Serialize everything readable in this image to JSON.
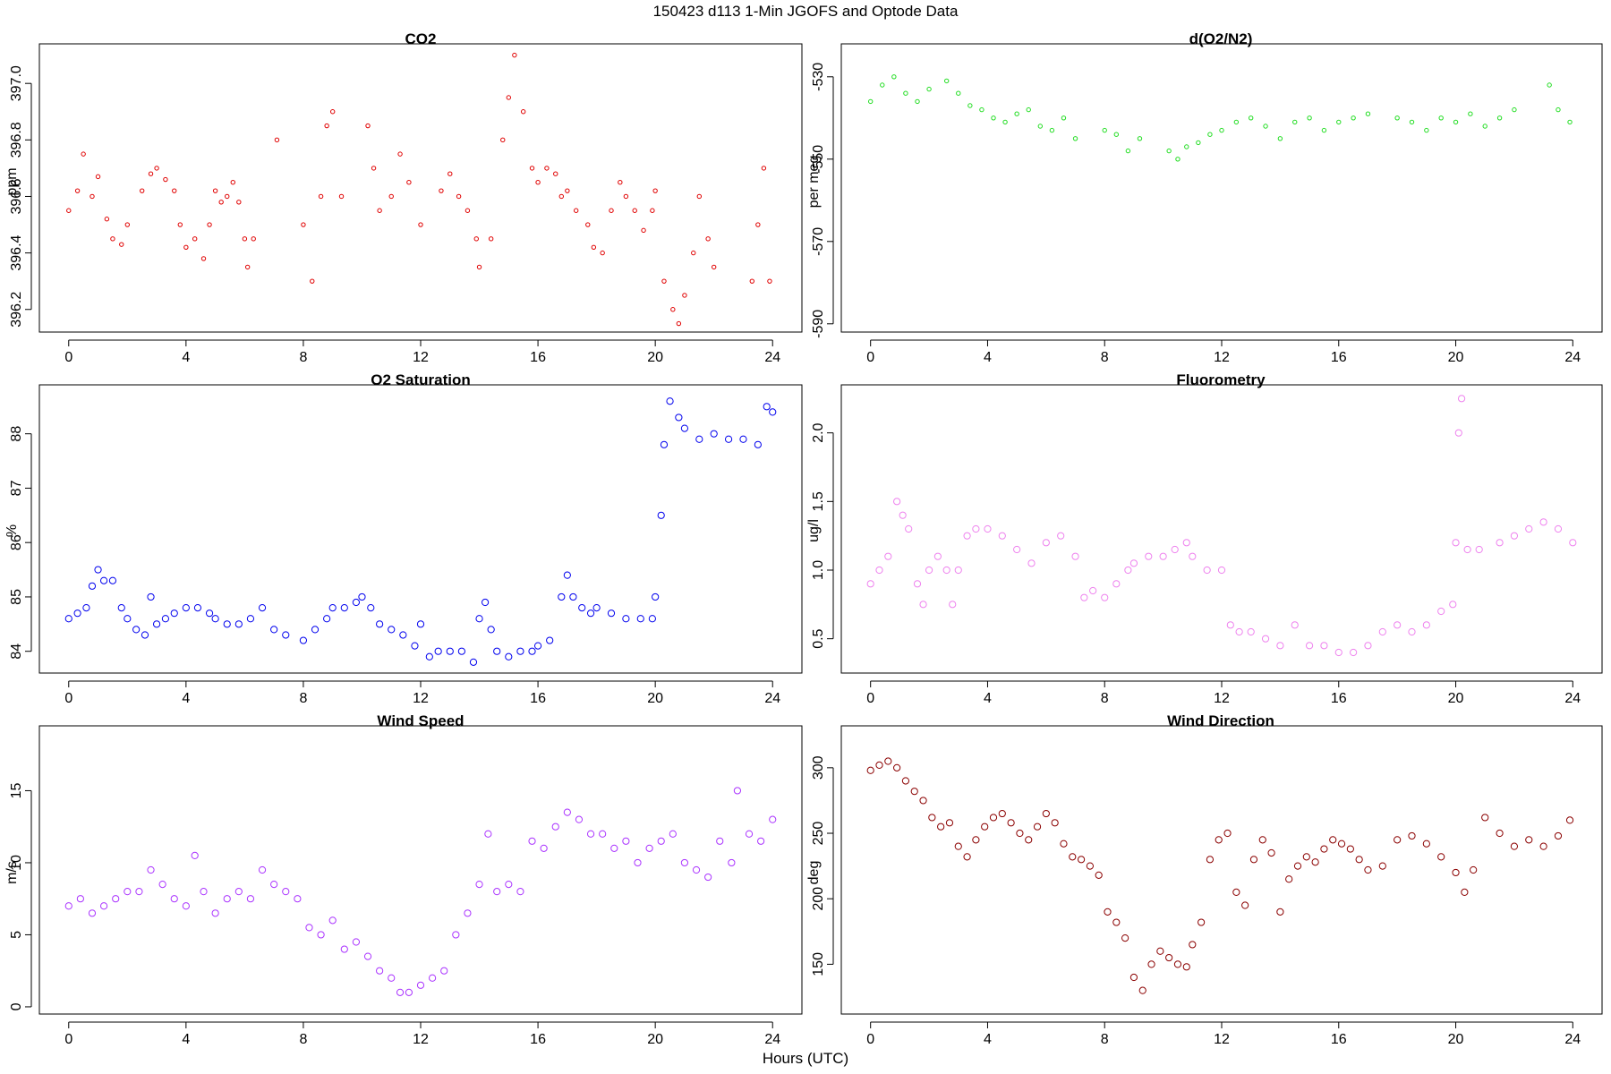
{
  "figure": {
    "title": "150423   d113   1-Min  JGOFS and Optode Data",
    "xlabel": "Hours (UTC)"
  },
  "chart_data": [
    {
      "id": "co2",
      "type": "scatter",
      "title": "CO2",
      "ylabel": "ppm",
      "color": "#e00000",
      "marker_size": 2.2,
      "xlim": [
        -1,
        25
      ],
      "ylim": [
        396.12,
        397.14
      ],
      "xticks": [
        0,
        4,
        8,
        12,
        16,
        20,
        24
      ],
      "yticks": [
        396.2,
        396.4,
        396.6,
        396.8,
        397.0
      ],
      "ytick_labels": [
        "396.2",
        "396.4",
        "396.6",
        "396.8",
        "397.0"
      ],
      "series": [
        {
          "name": "CO2",
          "x": [
            0,
            0.3,
            0.5,
            0.8,
            1.0,
            1.3,
            1.5,
            1.8,
            2.0,
            2.5,
            2.8,
            3.0,
            3.3,
            3.6,
            3.8,
            4.0,
            4.3,
            4.6,
            4.8,
            5.0,
            5.2,
            5.4,
            5.6,
            5.8,
            6.0,
            6.1,
            6.3,
            7.1,
            8.0,
            8.3,
            8.6,
            8.8,
            9.0,
            9.3,
            10.2,
            10.4,
            10.6,
            11.0,
            11.3,
            11.6,
            12.0,
            12.7,
            13.0,
            13.3,
            13.6,
            13.9,
            14.0,
            14.4,
            14.8,
            15.0,
            15.2,
            15.5,
            15.8,
            16.0,
            16.3,
            16.6,
            16.8,
            17.0,
            17.3,
            17.7,
            17.9,
            18.2,
            18.5,
            18.8,
            19.0,
            19.3,
            19.6,
            19.9,
            20.0,
            20.3,
            20.6,
            20.8,
            21.0,
            21.3,
            21.5,
            21.8,
            22.0,
            23.3,
            23.5,
            23.7,
            23.9
          ],
          "y": [
            396.55,
            396.62,
            396.75,
            396.6,
            396.67,
            396.52,
            396.45,
            396.43,
            396.5,
            396.62,
            396.68,
            396.7,
            396.66,
            396.62,
            396.5,
            396.42,
            396.45,
            396.38,
            396.5,
            396.62,
            396.58,
            396.6,
            396.65,
            396.58,
            396.45,
            396.35,
            396.45,
            396.8,
            396.5,
            396.3,
            396.6,
            396.85,
            396.9,
            396.6,
            396.85,
            396.7,
            396.55,
            396.6,
            396.75,
            396.65,
            396.5,
            396.62,
            396.68,
            396.6,
            396.55,
            396.45,
            396.35,
            396.45,
            396.8,
            396.95,
            397.1,
            396.9,
            396.7,
            396.65,
            396.7,
            396.68,
            396.6,
            396.62,
            396.55,
            396.5,
            396.42,
            396.4,
            396.55,
            396.65,
            396.6,
            396.55,
            396.48,
            396.55,
            396.62,
            396.3,
            396.2,
            396.15,
            396.25,
            396.4,
            396.6,
            396.45,
            396.35,
            396.3,
            396.5,
            396.7,
            396.3
          ]
        }
      ]
    },
    {
      "id": "do2n2",
      "type": "scatter",
      "title": "d(O2/N2)",
      "ylabel": "per meg",
      "color": "#22dd22",
      "marker_size": 2.2,
      "xlim": [
        -1,
        25
      ],
      "ylim": [
        -592,
        -522
      ],
      "xticks": [
        0,
        4,
        8,
        12,
        16,
        20,
        24
      ],
      "yticks": [
        -590,
        -570,
        -550,
        -530
      ],
      "ytick_labels": [
        "-590",
        "-570",
        "-550",
        "-530"
      ],
      "series": [
        {
          "name": "d(O2/N2)",
          "x": [
            0,
            0.4,
            0.8,
            1.2,
            1.6,
            2.0,
            2.6,
            3.0,
            3.4,
            3.8,
            4.2,
            4.6,
            5.0,
            5.4,
            5.8,
            6.2,
            6.6,
            7.0,
            8.0,
            8.4,
            8.8,
            9.2,
            10.2,
            10.5,
            10.8,
            11.2,
            11.6,
            12.0,
            12.5,
            13.0,
            13.5,
            14.0,
            14.5,
            15.0,
            15.5,
            16.0,
            16.5,
            17.0,
            18.0,
            18.5,
            19.0,
            19.5,
            20.0,
            20.5,
            21.0,
            21.5,
            22.0,
            23.2,
            23.5,
            23.9
          ],
          "y": [
            -536,
            -532,
            -530,
            -534,
            -536,
            -533,
            -531,
            -534,
            -537,
            -538,
            -540,
            -541,
            -539,
            -538,
            -542,
            -543,
            -540,
            -545,
            -543,
            -544,
            -548,
            -545,
            -548,
            -550,
            -547,
            -546,
            -544,
            -543,
            -541,
            -540,
            -542,
            -545,
            -541,
            -540,
            -543,
            -541,
            -540,
            -539,
            -540,
            -541,
            -543,
            -540,
            -541,
            -539,
            -542,
            -540,
            -538,
            -532,
            -538,
            -541
          ]
        }
      ]
    },
    {
      "id": "o2sat",
      "type": "scatter",
      "title": "O2 Saturation",
      "ylabel": "%",
      "color": "#0000ee",
      "marker_size": 3.6,
      "xlim": [
        -1,
        25
      ],
      "ylim": [
        83.6,
        88.9
      ],
      "xticks": [
        0,
        4,
        8,
        12,
        16,
        20,
        24
      ],
      "yticks": [
        84,
        85,
        86,
        87,
        88
      ],
      "ytick_labels": [
        "84",
        "85",
        "86",
        "87",
        "88"
      ],
      "series": [
        {
          "name": "O2 Saturation",
          "x": [
            0,
            0.3,
            0.6,
            0.8,
            1.0,
            1.2,
            1.5,
            1.8,
            2.0,
            2.3,
            2.6,
            2.8,
            3.0,
            3.3,
            3.6,
            4.0,
            4.4,
            4.8,
            5.0,
            5.4,
            5.8,
            6.2,
            6.6,
            7.0,
            7.4,
            8.0,
            8.4,
            8.8,
            9.0,
            9.4,
            9.8,
            10.0,
            10.3,
            10.6,
            11.0,
            11.4,
            11.8,
            12.0,
            12.3,
            12.6,
            13.0,
            13.4,
            13.8,
            14.0,
            14.2,
            14.4,
            14.6,
            15.0,
            15.4,
            15.8,
            16.0,
            16.4,
            16.8,
            17.0,
            17.2,
            17.5,
            17.8,
            18.0,
            18.5,
            19.0,
            19.5,
            19.9,
            20.0,
            20.2,
            20.3,
            20.5,
            20.8,
            21.0,
            21.5,
            22.0,
            22.5,
            23.0,
            23.5,
            23.8,
            24.0
          ],
          "y": [
            84.6,
            84.7,
            84.8,
            85.2,
            85.5,
            85.3,
            85.3,
            84.8,
            84.6,
            84.4,
            84.3,
            85.0,
            84.5,
            84.6,
            84.7,
            84.8,
            84.8,
            84.7,
            84.6,
            84.5,
            84.5,
            84.6,
            84.8,
            84.4,
            84.3,
            84.2,
            84.4,
            84.6,
            84.8,
            84.8,
            84.9,
            85.0,
            84.8,
            84.5,
            84.4,
            84.3,
            84.1,
            84.5,
            83.9,
            84.0,
            84.0,
            84.0,
            83.8,
            84.6,
            84.9,
            84.4,
            84.0,
            83.9,
            84.0,
            84.0,
            84.1,
            84.2,
            85.0,
            85.4,
            85.0,
            84.8,
            84.7,
            84.8,
            84.7,
            84.6,
            84.6,
            84.6,
            85.0,
            86.5,
            87.8,
            88.6,
            88.3,
            88.1,
            87.9,
            88.0,
            87.9,
            87.9,
            87.8,
            88.5,
            88.4
          ]
        }
      ]
    },
    {
      "id": "fluor",
      "type": "scatter",
      "title": "Fluorometry",
      "ylabel": "ug/l",
      "color": "#ee82ee",
      "marker_size": 3.6,
      "xlim": [
        -1,
        25
      ],
      "ylim": [
        0.25,
        2.35
      ],
      "xticks": [
        0,
        4,
        8,
        12,
        16,
        20,
        24
      ],
      "yticks": [
        0.5,
        1.0,
        1.5,
        2.0
      ],
      "ytick_labels": [
        "0.5",
        "1.0",
        "1.5",
        "2.0"
      ],
      "series": [
        {
          "name": "Fluorometry",
          "x": [
            0,
            0.3,
            0.6,
            0.9,
            1.1,
            1.3,
            1.6,
            1.8,
            2.0,
            2.3,
            2.6,
            2.8,
            3.0,
            3.3,
            3.6,
            4.0,
            4.5,
            5.0,
            5.5,
            6.0,
            6.5,
            7.0,
            7.3,
            7.6,
            8.0,
            8.4,
            8.8,
            9.0,
            9.5,
            10.0,
            10.4,
            10.8,
            11.0,
            11.5,
            12.0,
            12.3,
            12.6,
            13.0,
            13.5,
            14.0,
            14.5,
            15.0,
            15.5,
            16.0,
            16.5,
            17.0,
            17.5,
            18.0,
            18.5,
            19.0,
            19.5,
            19.9,
            20.0,
            20.1,
            20.2,
            20.4,
            20.8,
            21.5,
            22.0,
            22.5,
            23.0,
            23.5,
            24.0
          ],
          "y": [
            0.9,
            1.0,
            1.1,
            1.5,
            1.4,
            1.3,
            0.9,
            0.75,
            1.0,
            1.1,
            1.0,
            0.75,
            1.0,
            1.25,
            1.3,
            1.3,
            1.25,
            1.15,
            1.05,
            1.2,
            1.25,
            1.1,
            0.8,
            0.85,
            0.8,
            0.9,
            1.0,
            1.05,
            1.1,
            1.1,
            1.15,
            1.2,
            1.1,
            1.0,
            1.0,
            0.6,
            0.55,
            0.55,
            0.5,
            0.45,
            0.6,
            0.45,
            0.45,
            0.4,
            0.4,
            0.45,
            0.55,
            0.6,
            0.55,
            0.6,
            0.7,
            0.75,
            1.2,
            2.0,
            2.25,
            1.15,
            1.15,
            1.2,
            1.25,
            1.3,
            1.35,
            1.3,
            1.2
          ]
        }
      ]
    },
    {
      "id": "wspd",
      "type": "scatter",
      "title": "Wind Speed",
      "ylabel": "m/s",
      "color": "#aa33ff",
      "marker_size": 3.6,
      "xlim": [
        -1,
        25
      ],
      "ylim": [
        -0.5,
        19.5
      ],
      "xticks": [
        0,
        4,
        8,
        12,
        16,
        20,
        24
      ],
      "yticks": [
        0,
        5,
        10,
        15
      ],
      "ytick_labels": [
        "0",
        "5",
        "10",
        "15"
      ],
      "series": [
        {
          "name": "Wind Speed",
          "x": [
            0,
            0.4,
            0.8,
            1.2,
            1.6,
            2.0,
            2.4,
            2.8,
            3.2,
            3.6,
            4.0,
            4.3,
            4.6,
            5.0,
            5.4,
            5.8,
            6.2,
            6.6,
            7.0,
            7.4,
            7.8,
            8.2,
            8.6,
            9.0,
            9.4,
            9.8,
            10.2,
            10.6,
            11.0,
            11.3,
            11.6,
            12.0,
            12.4,
            12.8,
            13.2,
            13.6,
            14.0,
            14.3,
            14.6,
            15.0,
            15.4,
            15.8,
            16.2,
            16.6,
            17.0,
            17.4,
            17.8,
            18.2,
            18.6,
            19.0,
            19.4,
            19.8,
            20.2,
            20.6,
            21.0,
            21.4,
            21.8,
            22.2,
            22.6,
            22.8,
            23.2,
            23.6,
            24.0
          ],
          "y": [
            7.0,
            7.5,
            6.5,
            7.0,
            7.5,
            8.0,
            8.0,
            9.5,
            8.5,
            7.5,
            7.0,
            10.5,
            8.0,
            6.5,
            7.5,
            8.0,
            7.5,
            9.5,
            8.5,
            8.0,
            7.5,
            5.5,
            5.0,
            6.0,
            4.0,
            4.5,
            3.5,
            2.5,
            2.0,
            1.0,
            1.0,
            1.5,
            2.0,
            2.5,
            5.0,
            6.5,
            8.5,
            12.0,
            8.0,
            8.5,
            8.0,
            11.5,
            11.0,
            12.5,
            13.5,
            13.0,
            12.0,
            12.0,
            11.0,
            11.5,
            10.0,
            11.0,
            11.5,
            12.0,
            10.0,
            9.5,
            9.0,
            11.5,
            10.0,
            15.0,
            12.0,
            11.5,
            13.0
          ]
        }
      ]
    },
    {
      "id": "wdir",
      "type": "scatter",
      "title": "Wind Direction",
      "ylabel": "deg",
      "color": "#8b0000",
      "marker_size": 3.6,
      "xlim": [
        -1,
        25
      ],
      "ylim": [
        112,
        332
      ],
      "xticks": [
        0,
        4,
        8,
        12,
        16,
        20,
        24
      ],
      "yticks": [
        150,
        200,
        250,
        300
      ],
      "ytick_labels": [
        "150",
        "200",
        "250",
        "300"
      ],
      "series": [
        {
          "name": "Wind Direction",
          "x": [
            0,
            0.3,
            0.6,
            0.9,
            1.2,
            1.5,
            1.8,
            2.1,
            2.4,
            2.7,
            3.0,
            3.3,
            3.6,
            3.9,
            4.2,
            4.5,
            4.8,
            5.1,
            5.4,
            5.7,
            6.0,
            6.3,
            6.6,
            6.9,
            7.2,
            7.5,
            7.8,
            8.1,
            8.4,
            8.7,
            9.0,
            9.3,
            9.6,
            9.9,
            10.2,
            10.5,
            10.8,
            11.0,
            11.3,
            11.6,
            11.9,
            12.2,
            12.5,
            12.8,
            13.1,
            13.4,
            13.7,
            14.0,
            14.3,
            14.6,
            14.9,
            15.2,
            15.5,
            15.8,
            16.1,
            16.4,
            16.7,
            17.0,
            17.5,
            18.0,
            18.5,
            19.0,
            19.5,
            20.0,
            20.3,
            20.6,
            21.0,
            21.5,
            22.0,
            22.5,
            23.0,
            23.5,
            23.9
          ],
          "y": [
            298,
            302,
            305,
            300,
            290,
            282,
            275,
            262,
            255,
            258,
            240,
            232,
            245,
            255,
            262,
            265,
            258,
            250,
            245,
            255,
            265,
            258,
            242,
            232,
            230,
            225,
            218,
            190,
            182,
            170,
            140,
            130,
            150,
            160,
            155,
            150,
            148,
            165,
            182,
            230,
            245,
            250,
            205,
            195,
            230,
            245,
            235,
            190,
            215,
            225,
            232,
            228,
            238,
            245,
            242,
            238,
            230,
            222,
            225,
            245,
            248,
            242,
            232,
            220,
            205,
            222,
            262,
            250,
            240,
            245,
            240,
            248,
            260
          ]
        }
      ]
    }
  ]
}
